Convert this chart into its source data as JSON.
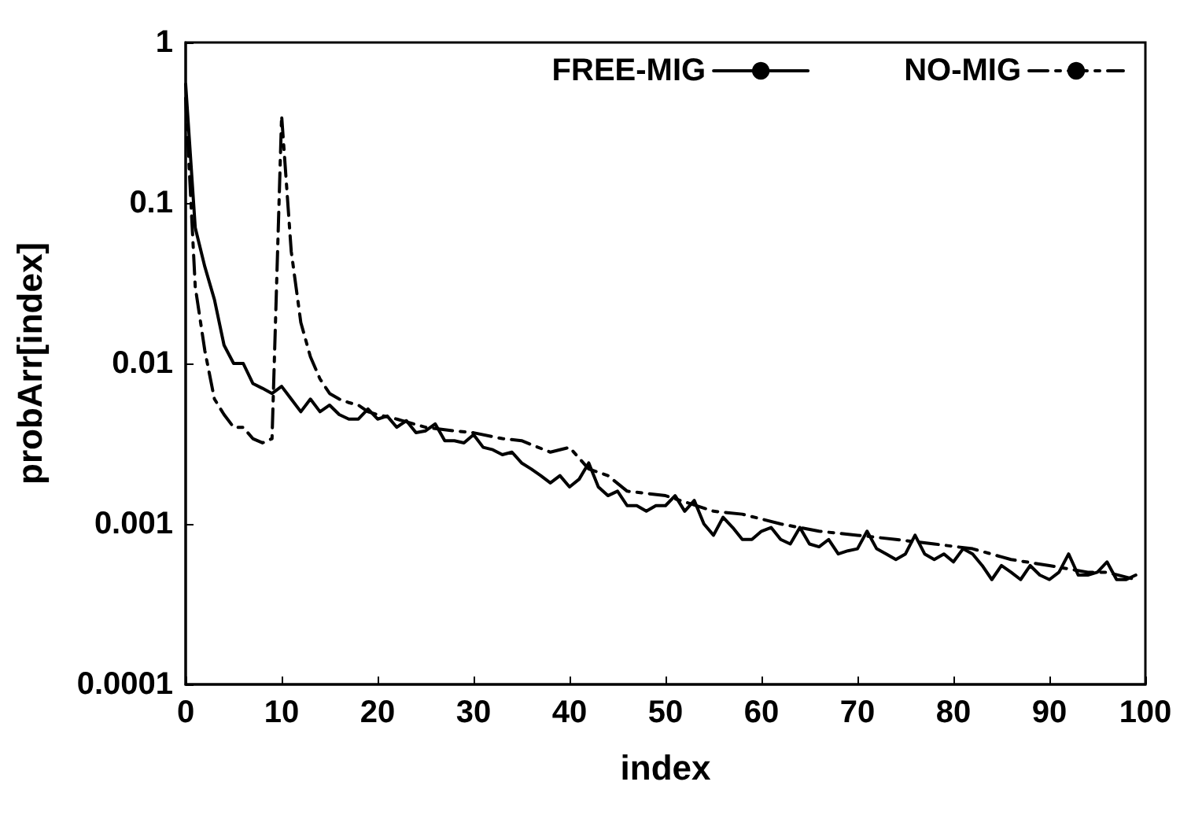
{
  "chart_data": {
    "type": "line",
    "xlabel": "index",
    "ylabel": "probArr[index]",
    "log": "y",
    "grid": false,
    "legend": "top right",
    "marker": "none",
    "xlim": [
      0,
      100
    ],
    "xticks": [
      0,
      10,
      20,
      30,
      40,
      50,
      60,
      70,
      80,
      90,
      100
    ],
    "ylim": [
      0.0001,
      1
    ],
    "yticks": [
      {
        "value": 0.0001,
        "label": "0.0001"
      },
      {
        "value": 0.001,
        "label": "0.001"
      },
      {
        "value": 0.01,
        "label": "0.01"
      },
      {
        "value": 0.1,
        "label": "0.1"
      },
      1
    ],
    "series": [
      {
        "name": "FREE-MIG",
        "color": "#000000",
        "line_style": "solid",
        "x": [
          0,
          1,
          2,
          3,
          4,
          5,
          6,
          7,
          8,
          9,
          10,
          11,
          12,
          13,
          14,
          15,
          16,
          17,
          18,
          19,
          20,
          21,
          22,
          23,
          24,
          25,
          26,
          27,
          28,
          29,
          30,
          31,
          32,
          33,
          34,
          35,
          36,
          37,
          38,
          39,
          40,
          41,
          42,
          43,
          44,
          45,
          46,
          47,
          48,
          49,
          50,
          51,
          52,
          53,
          54,
          55,
          56,
          57,
          58,
          59,
          60,
          61,
          62,
          63,
          64,
          65,
          66,
          67,
          68,
          69,
          70,
          71,
          72,
          73,
          74,
          75,
          76,
          77,
          78,
          79,
          80,
          81,
          82,
          83,
          84,
          85,
          86,
          87,
          88,
          89,
          90,
          91,
          92,
          93,
          94,
          95,
          96,
          97,
          98,
          99
        ],
        "values": [
          0.55,
          0.07,
          0.04,
          0.025,
          0.013,
          0.01,
          0.01,
          0.0075,
          0.007,
          0.0065,
          0.0072,
          0.006,
          0.005,
          0.006,
          0.005,
          0.0055,
          0.0048,
          0.0045,
          0.0045,
          0.0052,
          0.0045,
          0.0047,
          0.004,
          0.0044,
          0.0037,
          0.0038,
          0.0042,
          0.0033,
          0.0033,
          0.0032,
          0.0036,
          0.003,
          0.0029,
          0.0027,
          0.0028,
          0.0024,
          0.0022,
          0.002,
          0.0018,
          0.002,
          0.0017,
          0.0019,
          0.0024,
          0.0017,
          0.0015,
          0.0016,
          0.0013,
          0.0013,
          0.0012,
          0.0013,
          0.0013,
          0.0015,
          0.0012,
          0.0014,
          0.001,
          0.00085,
          0.0011,
          0.00095,
          0.0008,
          0.0008,
          0.0009,
          0.00095,
          0.0008,
          0.00075,
          0.00095,
          0.00075,
          0.00072,
          0.0008,
          0.00065,
          0.00068,
          0.0007,
          0.0009,
          0.0007,
          0.00065,
          0.0006,
          0.00065,
          0.00085,
          0.00065,
          0.0006,
          0.00065,
          0.00058,
          0.0007,
          0.00065,
          0.00055,
          0.00045,
          0.00055,
          0.0005,
          0.00045,
          0.00055,
          0.00048,
          0.00045,
          0.0005,
          0.00065,
          0.00048,
          0.00048,
          0.0005,
          0.00058,
          0.00045,
          0.00045,
          0.00048
        ]
      },
      {
        "name": "NO-MIG",
        "color": "#000000",
        "line_style": "dashdot",
        "x": [
          0,
          1,
          2,
          3,
          4,
          5,
          6,
          7,
          8,
          9,
          10,
          11,
          12,
          13,
          14,
          15,
          16,
          17,
          18,
          19,
          20,
          22,
          25,
          28,
          30,
          33,
          35,
          38,
          40,
          42,
          44,
          46,
          50,
          55,
          58,
          62,
          66,
          70,
          74,
          78,
          82,
          86,
          90,
          94,
          96,
          99
        ],
        "values": [
          0.45,
          0.03,
          0.012,
          0.006,
          0.0048,
          0.004,
          0.004,
          0.0034,
          0.0032,
          0.0034,
          0.35,
          0.05,
          0.018,
          0.011,
          0.008,
          0.0065,
          0.006,
          0.0057,
          0.0055,
          0.005,
          0.0048,
          0.0045,
          0.004,
          0.0038,
          0.0037,
          0.0034,
          0.0033,
          0.0028,
          0.003,
          0.0022,
          0.002,
          0.0016,
          0.0015,
          0.0012,
          0.00115,
          0.001,
          0.0009,
          0.00085,
          0.0008,
          0.00075,
          0.0007,
          0.0006,
          0.00055,
          0.0005,
          0.0005,
          0.00045
        ]
      }
    ]
  }
}
